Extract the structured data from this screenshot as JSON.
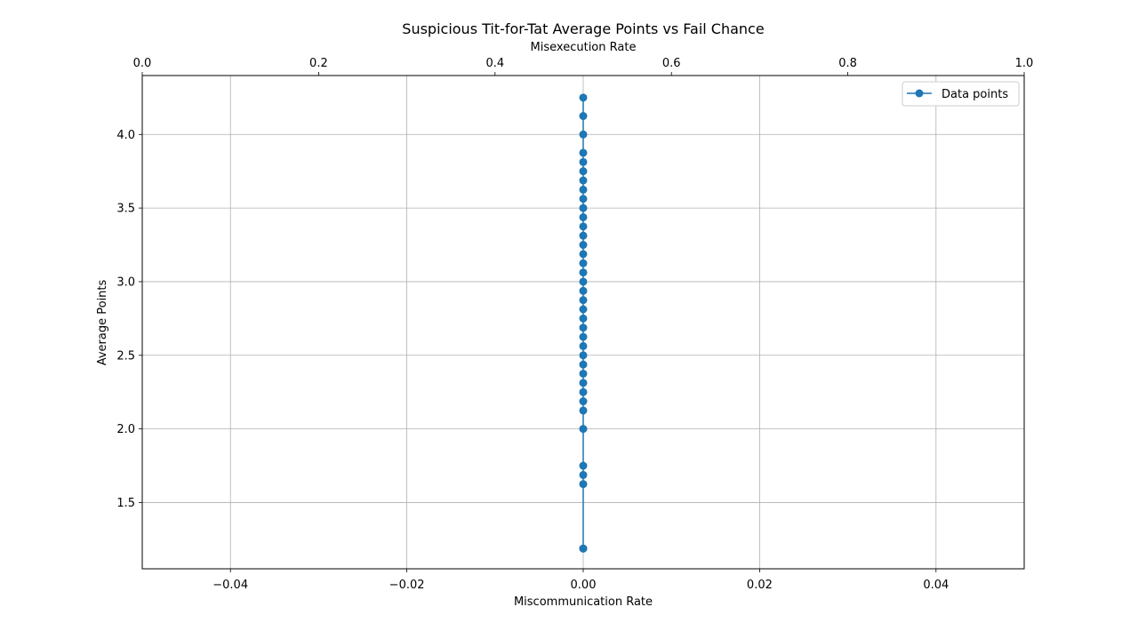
{
  "chart_data": {
    "type": "line",
    "title": "Suspicious Tit-for-Tat Average Points vs Fail Chance",
    "xlabel": "Miscommunication Rate",
    "x2label": "Misexecution Rate",
    "ylabel": "Average Points",
    "xlim": [
      -0.05,
      0.05
    ],
    "x2lim": [
      0.0,
      1.0
    ],
    "ylim": [
      1.05,
      4.4
    ],
    "xticks": [
      -0.04,
      -0.02,
      0.0,
      0.02,
      0.04
    ],
    "xtick_labels": [
      "−0.04",
      "−0.02",
      "0.00",
      "0.02",
      "0.04"
    ],
    "x2ticks": [
      0.0,
      0.2,
      0.4,
      0.6,
      0.8,
      1.0
    ],
    "x2tick_labels": [
      "0.0",
      "0.2",
      "0.4",
      "0.6",
      "0.8",
      "1.0"
    ],
    "yticks": [
      1.5,
      2.0,
      2.5,
      3.0,
      3.5,
      4.0
    ],
    "ytick_labels": [
      "1.5",
      "2.0",
      "2.5",
      "3.0",
      "3.5",
      "4.0"
    ],
    "grid": true,
    "legend_position": "top-right",
    "color": "#1f77b4",
    "series": [
      {
        "name": "Data points",
        "x": [
          0,
          0,
          0,
          0,
          0,
          0,
          0,
          0,
          0,
          0,
          0,
          0,
          0,
          0,
          0,
          0,
          0,
          0,
          0,
          0,
          0,
          0,
          0,
          0,
          0,
          0,
          0,
          0,
          0,
          0,
          0,
          0,
          0,
          0,
          0,
          0,
          0,
          0
        ],
        "y": [
          4.25,
          4.125,
          4.0,
          3.875,
          3.8125,
          3.75,
          3.6875,
          3.625,
          3.5625,
          3.5,
          3.4375,
          3.375,
          3.3125,
          3.25,
          3.1875,
          3.125,
          3.0625,
          3.0,
          2.9375,
          2.875,
          2.8125,
          2.75,
          2.6875,
          2.625,
          2.5625,
          2.5,
          2.4375,
          2.375,
          2.3125,
          2.25,
          2.1875,
          2.125,
          2.0,
          1.75,
          1.6875,
          1.625,
          1.1875,
          1.1875
        ]
      }
    ]
  }
}
